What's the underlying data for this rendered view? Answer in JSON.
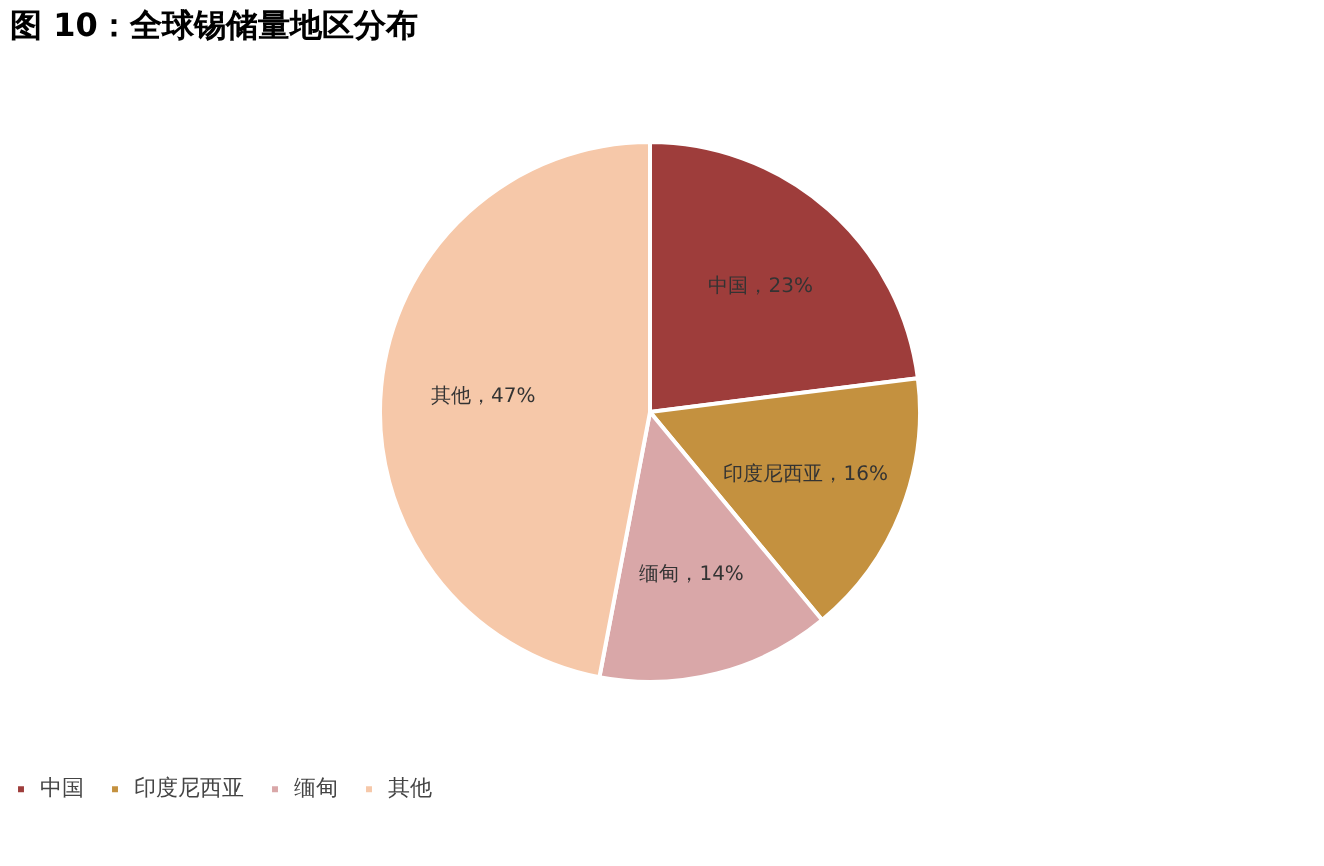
{
  "chart_data": {
    "type": "pie",
    "title": "图 10：全球锡储量地区分布",
    "categories": [
      "中国",
      "印度尼西亚",
      "缅甸",
      "其他"
    ],
    "values": [
      23,
      16,
      14,
      47
    ],
    "colors": [
      "#9e3d3b",
      "#c4913f",
      "#d9a7a8",
      "#f6c8a9"
    ],
    "value_labels": [
      "中国，23%",
      "印度尼西亚，16%",
      "缅甸，14%",
      "其他，47%"
    ],
    "legend": "bottom"
  }
}
